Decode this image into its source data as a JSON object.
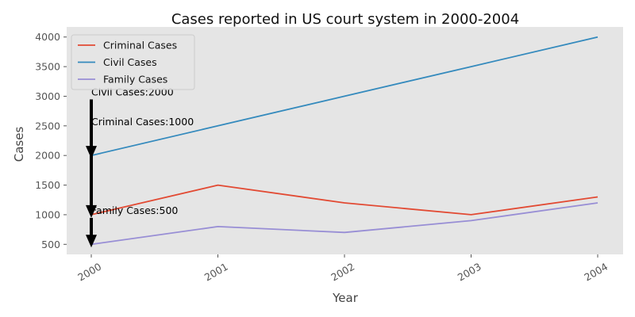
{
  "chart_data": {
    "type": "line",
    "title": "Cases reported in US court system in 2000-2004",
    "xlabel": "Year",
    "ylabel": "Cases",
    "x": [
      "2000",
      "2001",
      "2002",
      "2003",
      "2004"
    ],
    "yticks": [
      500,
      1000,
      1500,
      2000,
      2500,
      3000,
      3500,
      4000
    ],
    "ylim": [
      330,
      4170
    ],
    "grid": false,
    "legend_position": "top-left",
    "series": [
      {
        "name": "Criminal Cases",
        "color": "#E24A33",
        "values": [
          1000,
          1500,
          1200,
          1000,
          1300
        ]
      },
      {
        "name": "Civil Cases",
        "color": "#348ABD",
        "values": [
          2000,
          2500,
          3000,
          3500,
          4000
        ]
      },
      {
        "name": "Family Cases",
        "color": "#988ED5",
        "values": [
          500,
          800,
          700,
          900,
          1200
        ]
      }
    ],
    "annotations": [
      {
        "text": "Civil Cases:2000",
        "x": "2000",
        "y": 2000,
        "text_y": 3000
      },
      {
        "text": "Criminal Cases:1000",
        "x": "2000",
        "y": 1000,
        "text_y": 2500
      },
      {
        "text": "Family Cases:500",
        "x": "2000",
        "y": 500,
        "text_y": 1000
      }
    ]
  }
}
